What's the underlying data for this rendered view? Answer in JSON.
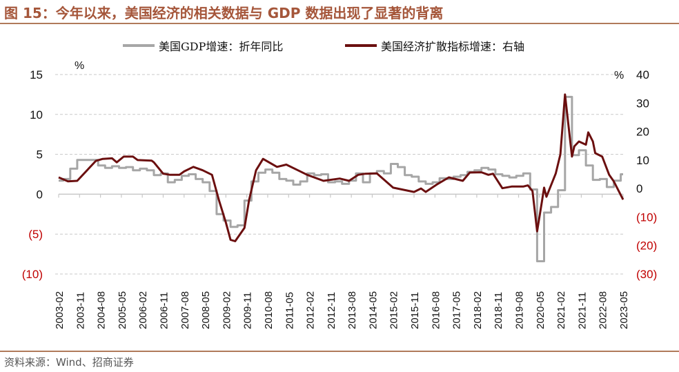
{
  "title": "图 15：今年以来，美国经济的相关数据与 GDP 数据出现了显著的背离",
  "source": "资料来源：Wind、招商证券",
  "colors": {
    "gdp": "#a6a6a6",
    "diffusion": "#6b0f0f",
    "title": "#a5563a",
    "negative_label": "#c00000"
  },
  "chart_data": {
    "type": "line",
    "title": "图 15：今年以来，美国经济的相关数据与 GDP 数据出现了显著的背离",
    "left_axis": {
      "unit": "%",
      "ylim": [
        -10,
        15
      ],
      "ticks": [
        15,
        10,
        5,
        0,
        -5,
        -10
      ],
      "tick_labels": [
        "15",
        "10",
        "5",
        "0",
        "(5)",
        "(10)"
      ]
    },
    "right_axis": {
      "unit": "%",
      "ylim": [
        -30,
        40
      ],
      "ticks": [
        40,
        30,
        20,
        10,
        0,
        -10,
        -20,
        -30
      ],
      "tick_labels": [
        "40",
        "30",
        "20",
        "10",
        "0",
        "(10)",
        "(20)",
        "(30)"
      ]
    },
    "grid": true,
    "x_tick_labels": [
      "2003-02",
      "2003-11",
      "2004-08",
      "2005-05",
      "2006-02",
      "2006-11",
      "2007-08",
      "2008-05",
      "2009-02",
      "2009-11",
      "2010-08",
      "2011-05",
      "2012-02",
      "2012-11",
      "2013-08",
      "2014-05",
      "2015-02",
      "2015-11",
      "2016-08",
      "2017-05",
      "2018-02",
      "2018-11",
      "2019-08",
      "2020-05",
      "2021-02",
      "2021-11",
      "2022-08",
      "2023-05"
    ],
    "legend": {
      "placement": "top",
      "entries": [
        "美国GDP增速：折年同比",
        "美国经济扩散指标增速：右轴"
      ]
    },
    "series": [
      {
        "name": "美国GDP增速：折年同比",
        "axis": "left",
        "frequency": "quarterly",
        "start_quarter": "2003Q1",
        "values": [
          1.7,
          1.9,
          3.2,
          4.3,
          4.3,
          4.3,
          3.6,
          3.3,
          3.5,
          3.3,
          3.4,
          3.0,
          3.2,
          3.0,
          2.4,
          2.6,
          1.5,
          1.8,
          2.3,
          2.5,
          1.9,
          1.5,
          0.4,
          -2.5,
          -3.3,
          -4.1,
          -3.9,
          -0.8,
          1.6,
          2.7,
          3.1,
          2.7,
          1.9,
          1.7,
          1.2,
          1.6,
          2.6,
          2.4,
          2.5,
          1.5,
          1.6,
          1.3,
          1.7,
          2.6,
          1.5,
          2.6,
          2.9,
          2.6,
          3.8,
          3.4,
          2.4,
          2.2,
          1.6,
          1.3,
          1.5,
          2.0,
          1.9,
          2.2,
          2.4,
          2.8,
          3.0,
          3.3,
          3.1,
          2.5,
          2.3,
          2.1,
          2.3,
          2.6,
          0.6,
          -8.4,
          -2.3,
          -1.6,
          0.5,
          12.2,
          4.9,
          5.5,
          3.6,
          1.8,
          1.9,
          0.9,
          1.7,
          2.5
        ]
      },
      {
        "name": "美国经济扩散指标增速：右轴",
        "axis": "right",
        "frequency": "monthly",
        "start_month": "2003-02",
        "points_month_offset_value": [
          [
            0,
            3.9
          ],
          [
            4,
            2.5
          ],
          [
            8,
            2.7
          ],
          [
            16,
            9.7
          ],
          [
            19,
            10.4
          ],
          [
            23,
            10.6
          ],
          [
            25,
            9.2
          ],
          [
            28,
            11.2
          ],
          [
            32,
            11.2
          ],
          [
            34,
            10
          ],
          [
            40,
            9.8
          ],
          [
            41,
            9.2
          ],
          [
            45,
            5.2
          ],
          [
            48,
            4.8
          ],
          [
            52,
            4.8
          ],
          [
            54,
            6
          ],
          [
            58,
            7.6
          ],
          [
            62,
            6.4
          ],
          [
            66,
            4.8
          ],
          [
            69,
            -4.1
          ],
          [
            72,
            -12
          ],
          [
            74,
            -18
          ],
          [
            76,
            -18.5
          ],
          [
            80,
            -13.8
          ],
          [
            82,
            -4
          ],
          [
            85,
            6.4
          ],
          [
            88,
            10.4
          ],
          [
            94,
            7.6
          ],
          [
            98,
            8.4
          ],
          [
            103,
            6.4
          ],
          [
            107,
            4.8
          ],
          [
            114,
            2.7
          ],
          [
            121,
            3.5
          ],
          [
            125,
            2.7
          ],
          [
            129,
            4.8
          ],
          [
            132,
            5.2
          ],
          [
            137,
            5.3
          ],
          [
            144,
            0.3
          ],
          [
            153,
            -1.2
          ],
          [
            156,
            0
          ],
          [
            158,
            -1.2
          ],
          [
            163,
            1.5
          ],
          [
            168,
            3.9
          ],
          [
            174,
            2.7
          ],
          [
            177,
            5.6
          ],
          [
            182,
            5.7
          ],
          [
            185,
            4.8
          ],
          [
            187,
            5.2
          ],
          [
            191,
            0.1
          ],
          [
            195,
            0.7
          ],
          [
            200,
            0.7
          ],
          [
            202,
            1.1
          ],
          [
            204,
            -0.9
          ],
          [
            206,
            -15
          ],
          [
            208,
            -4.8
          ],
          [
            209,
            0.3
          ],
          [
            210,
            -2.9
          ],
          [
            214,
            5.3
          ],
          [
            216,
            12
          ],
          [
            218,
            33
          ],
          [
            221,
            11.2
          ],
          [
            222,
            14.8
          ],
          [
            224,
            16.5
          ],
          [
            227,
            15.4
          ],
          [
            228,
            19.7
          ],
          [
            230,
            16.5
          ],
          [
            231,
            12.4
          ],
          [
            234,
            11.2
          ],
          [
            237,
            4.8
          ],
          [
            239,
            2.5
          ],
          [
            243,
            -3.9
          ]
        ]
      }
    ]
  }
}
